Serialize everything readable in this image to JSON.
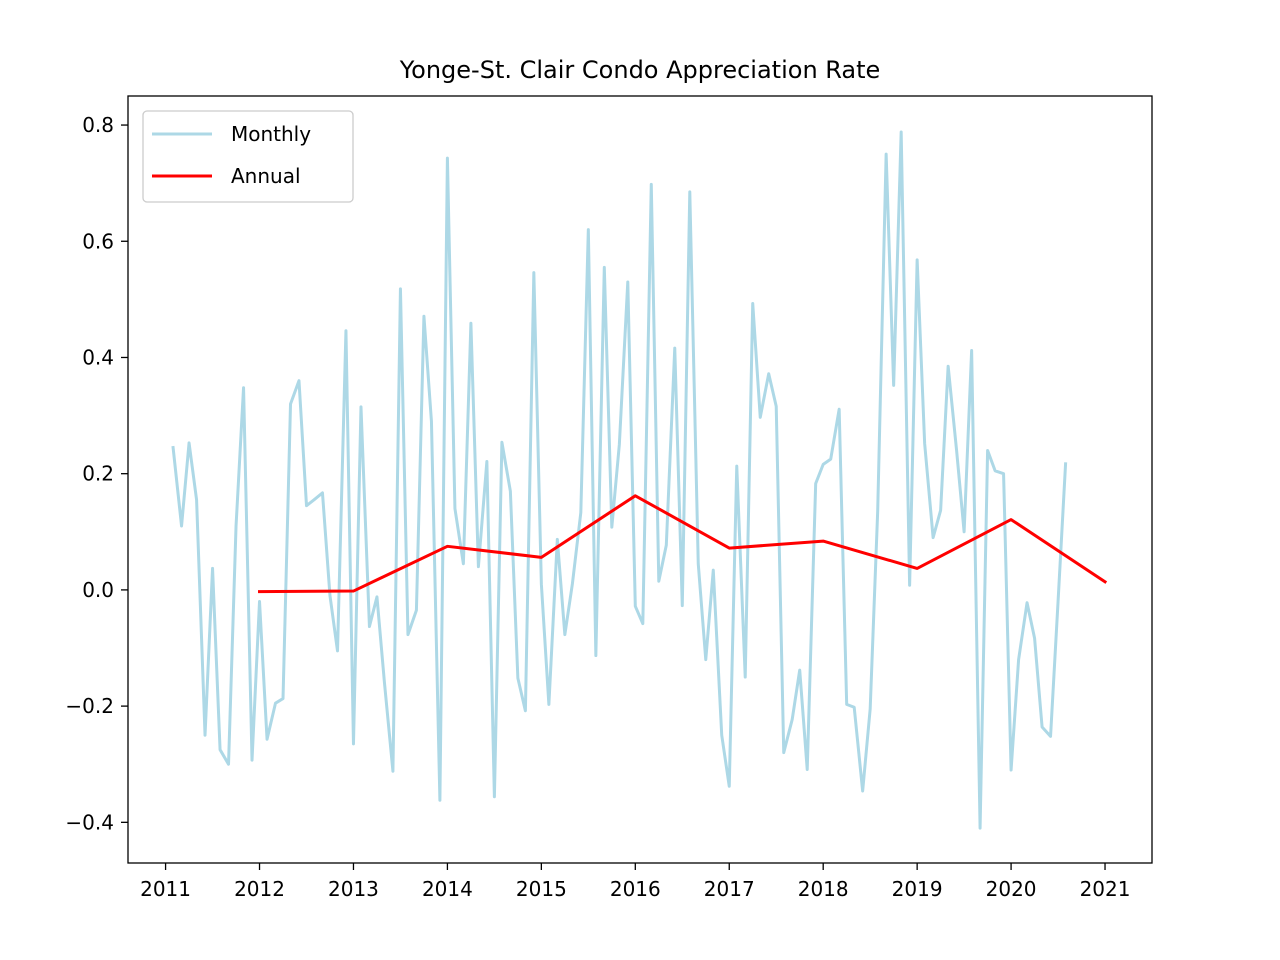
{
  "chart_data": {
    "type": "line",
    "title": "Yonge-St. Clair Condo Appreciation Rate",
    "xlabel": "",
    "ylabel": "",
    "xlim": [
      2010.6,
      2021.5
    ],
    "ylim": [
      -0.47,
      0.85
    ],
    "x_ticks": [
      2011,
      2012,
      2013,
      2014,
      2015,
      2016,
      2017,
      2018,
      2019,
      2020,
      2021
    ],
    "x_tick_labels": [
      "2011",
      "2012",
      "2013",
      "2014",
      "2015",
      "2016",
      "2017",
      "2018",
      "2019",
      "2020",
      "2021"
    ],
    "y_ticks": [
      -0.4,
      -0.2,
      0.0,
      0.2,
      0.4,
      0.6,
      0.8
    ],
    "y_tick_labels": [
      "−0.4",
      "−0.2",
      "0.0",
      "0.2",
      "0.4",
      "0.6",
      "0.8"
    ],
    "grid": false,
    "legend": {
      "position": "top-left"
    },
    "series": [
      {
        "name": "Monthly",
        "color": "#add8e6",
        "x": [
          2011.08,
          2011.17,
          2011.25,
          2011.33,
          2011.42,
          2011.5,
          2011.58,
          2011.67,
          2011.75,
          2011.83,
          2011.92,
          2012.0,
          2012.08,
          2012.17,
          2012.25,
          2012.33,
          2012.42,
          2012.5,
          2012.58,
          2012.67,
          2012.75,
          2012.83,
          2012.92,
          2013.0,
          2013.08,
          2013.17,
          2013.25,
          2013.33,
          2013.42,
          2013.5,
          2013.58,
          2013.67,
          2013.75,
          2013.83,
          2013.92,
          2014.0,
          2014.08,
          2014.17,
          2014.25,
          2014.33,
          2014.42,
          2014.5,
          2014.58,
          2014.67,
          2014.75,
          2014.83,
          2014.92,
          2015.0,
          2015.08,
          2015.17,
          2015.25,
          2015.33,
          2015.42,
          2015.5,
          2015.58,
          2015.67,
          2015.75,
          2015.83,
          2015.92,
          2016.0,
          2016.08,
          2016.17,
          2016.25,
          2016.33,
          2016.42,
          2016.5,
          2016.58,
          2016.67,
          2016.75,
          2016.83,
          2016.92,
          2017.0,
          2017.08,
          2017.17,
          2017.25,
          2017.33,
          2017.42,
          2017.5,
          2017.58,
          2017.67,
          2017.75,
          2017.83,
          2017.92,
          2018.0,
          2018.08,
          2018.17,
          2018.25,
          2018.33,
          2018.42,
          2018.5,
          2018.58,
          2018.67,
          2018.75,
          2018.83,
          2018.92,
          2019.0,
          2019.08,
          2019.17,
          2019.25,
          2019.33,
          2019.42,
          2019.5,
          2019.58,
          2019.67,
          2019.75,
          2019.83,
          2019.92,
          2020.0,
          2020.08,
          2020.17,
          2020.25,
          2020.33,
          2020.42,
          2020.5,
          2020.58
        ],
        "values": [
          0.245,
          0.11,
          0.253,
          0.155,
          -0.25,
          0.037,
          -0.275,
          -0.3,
          0.11,
          0.348,
          -0.293,
          -0.02,
          -0.257,
          -0.195,
          -0.187,
          0.32,
          0.36,
          0.145,
          0.155,
          0.167,
          -0.01,
          -0.105,
          0.446,
          -0.265,
          0.315,
          -0.063,
          -0.012,
          -0.16,
          -0.312,
          0.518,
          -0.077,
          -0.035,
          0.471,
          0.29,
          -0.362,
          0.743,
          0.14,
          0.045,
          0.459,
          0.04,
          0.221,
          -0.356,
          0.254,
          0.17,
          -0.152,
          -0.208,
          0.546,
          0.01,
          -0.197,
          0.087,
          -0.077,
          0.01,
          0.133,
          0.62,
          -0.113,
          0.555,
          0.108,
          0.25,
          0.53,
          -0.028,
          -0.058,
          0.698,
          0.015,
          0.077,
          0.416,
          -0.027,
          0.685,
          0.045,
          -0.12,
          0.034,
          -0.25,
          -0.338,
          0.213,
          -0.15,
          0.493,
          0.297,
          0.372,
          0.316,
          -0.28,
          -0.223,
          -0.138,
          -0.309,
          0.183,
          0.216,
          0.225,
          0.311,
          -0.197,
          -0.202,
          -0.346,
          -0.205,
          0.135,
          0.75,
          0.352,
          0.788,
          0.008,
          0.568,
          0.252,
          0.09,
          0.137,
          0.385,
          0.24,
          0.1,
          0.412,
          -0.41,
          0.24,
          0.205,
          0.2,
          -0.31,
          -0.12,
          -0.022,
          -0.083,
          -0.236,
          -0.252,
          -0.02,
          0.217
        ]
      },
      {
        "name": "Annual",
        "color": "#ff0000",
        "x": [
          2012,
          2013,
          2014,
          2015,
          2016,
          2017,
          2018,
          2019,
          2020,
          2021
        ],
        "values": [
          -0.003,
          -0.002,
          0.075,
          0.056,
          0.162,
          0.072,
          0.084,
          0.037,
          0.121,
          0.014
        ]
      }
    ]
  }
}
